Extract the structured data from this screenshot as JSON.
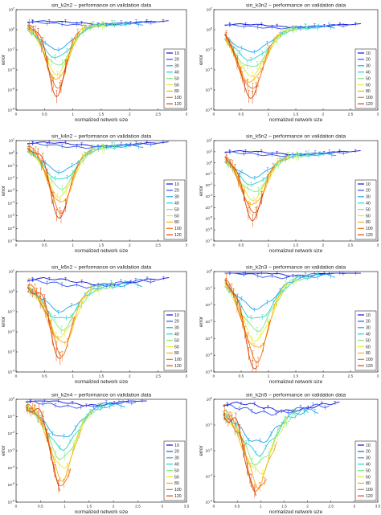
{
  "figure": {
    "legend_values": [
      "10",
      "20",
      "30",
      "40",
      "50",
      "60",
      "80",
      "100",
      "120"
    ]
  },
  "chart_data": [
    {
      "type": "line",
      "title": "sin_k2n2 – performance on validation data",
      "xlabel": "normalized network size",
      "ylabel": "error",
      "xlim": [
        0,
        3
      ],
      "x_ticks": [
        "0",
        "0.5",
        "1",
        "1.5",
        "2",
        "2.5",
        "3"
      ],
      "y_log": true,
      "y_exp": [
        -8,
        2
      ],
      "y_ticks": [
        "10^2",
        "10^0",
        "10^-2",
        "10^-4",
        "10^-6",
        "10^-8"
      ],
      "grid": false,
      "legend_position": "right",
      "series": [
        {
          "name": "10"
        },
        {
          "name": "20"
        },
        {
          "name": "30"
        },
        {
          "name": "40"
        },
        {
          "name": "50"
        },
        {
          "name": "60"
        },
        {
          "name": "80"
        },
        {
          "name": "100"
        },
        {
          "name": "120"
        }
      ]
    },
    {
      "type": "line",
      "title": "sin_k3n2 – performance on validation data",
      "xlabel": "normalized network size",
      "ylabel": "error",
      "xlim": [
        0,
        3
      ],
      "x_ticks": [
        "0",
        "0.5",
        "1",
        "1.5",
        "2",
        "2.5",
        "3"
      ],
      "y_log": true,
      "y_exp": [
        -8,
        2
      ],
      "y_ticks": [
        "10^2",
        "10^0",
        "10^-2",
        "10^-4",
        "10^-6",
        "10^-8"
      ],
      "grid": false,
      "legend_position": "right",
      "series": [
        {
          "name": "10"
        },
        {
          "name": "20"
        },
        {
          "name": "30"
        },
        {
          "name": "40"
        },
        {
          "name": "50"
        },
        {
          "name": "60"
        },
        {
          "name": "80"
        },
        {
          "name": "100"
        },
        {
          "name": "120"
        }
      ]
    },
    {
      "type": "line",
      "title": "sin_k4n2 – performance on validation data",
      "xlabel": "normalized network size",
      "ylabel": "error",
      "xlim": [
        0,
        3
      ],
      "x_ticks": [
        "0",
        "0.5",
        "1",
        "1.5",
        "2",
        "2.5",
        "3"
      ],
      "y_log": true,
      "y_exp": [
        -7,
        1
      ],
      "y_ticks": [
        "10^1",
        "10^0",
        "10^-1",
        "10^-2",
        "10^-3",
        "10^-4",
        "10^-5",
        "10^-6",
        "10^-7"
      ],
      "grid": false,
      "legend_position": "right",
      "series": [
        {
          "name": "10"
        },
        {
          "name": "20"
        },
        {
          "name": "30"
        },
        {
          "name": "40"
        },
        {
          "name": "50"
        },
        {
          "name": "60"
        },
        {
          "name": "80"
        },
        {
          "name": "100"
        },
        {
          "name": "120"
        }
      ]
    },
    {
      "type": "line",
      "title": "sin_k5n2 – performance on validation data",
      "xlabel": "normalized network size",
      "ylabel": "error",
      "xlim": [
        0,
        3
      ],
      "x_ticks": [
        "0",
        "0.5",
        "1",
        "1.5",
        "2",
        "2.5",
        "3"
      ],
      "y_log": true,
      "y_exp": [
        -7,
        2
      ],
      "y_ticks": [
        "10^2",
        "10^1",
        "10^0",
        "10^-1",
        "10^-2",
        "10^-3",
        "10^-4",
        "10^-5",
        "10^-6",
        "10^-7"
      ],
      "grid": false,
      "legend_position": "right",
      "series": [
        {
          "name": "10"
        },
        {
          "name": "20"
        },
        {
          "name": "30"
        },
        {
          "name": "40"
        },
        {
          "name": "50"
        },
        {
          "name": "60"
        },
        {
          "name": "80"
        },
        {
          "name": "100"
        },
        {
          "name": "120"
        }
      ]
    },
    {
      "type": "line",
      "title": "sin_k6n2 – performance on validation data",
      "xlabel": "normalized network size",
      "ylabel": "error",
      "xlim": [
        0,
        3
      ],
      "x_ticks": [
        "0",
        "0.5",
        "1",
        "1.5",
        "2",
        "2.5",
        "3"
      ],
      "y_log": true,
      "y_exp": [
        -4,
        1
      ],
      "y_ticks": [
        "10^1",
        "10^0",
        "10^-1",
        "10^-2",
        "10^-3",
        "10^-4"
      ],
      "grid": false,
      "legend_position": "right",
      "series": [
        {
          "name": "10"
        },
        {
          "name": "20"
        },
        {
          "name": "30"
        },
        {
          "name": "40"
        },
        {
          "name": "50"
        },
        {
          "name": "60"
        },
        {
          "name": "80"
        },
        {
          "name": "100"
        },
        {
          "name": "120"
        }
      ]
    },
    {
      "type": "line",
      "title": "sin_k2n3 – performance on validation data",
      "xlabel": "normalized network size",
      "ylabel": "error",
      "xlim": [
        0,
        3
      ],
      "x_ticks": [
        "0",
        "0.5",
        "1",
        "1.5",
        "2",
        "2.5",
        "3"
      ],
      "y_log": true,
      "y_exp": [
        -6,
        0
      ],
      "y_ticks": [
        "10^0",
        "10^-1",
        "10^-2",
        "10^-3",
        "10^-4",
        "10^-5",
        "10^-6"
      ],
      "grid": false,
      "legend_position": "right",
      "series": [
        {
          "name": "10"
        },
        {
          "name": "20"
        },
        {
          "name": "30"
        },
        {
          "name": "40"
        },
        {
          "name": "50"
        },
        {
          "name": "60"
        },
        {
          "name": "80"
        },
        {
          "name": "100"
        },
        {
          "name": "120"
        }
      ]
    },
    {
      "type": "line",
      "title": "sin_k2n4 – performance on validation data",
      "xlabel": "normalized network size",
      "ylabel": "error",
      "xlim": [
        0,
        3.5
      ],
      "x_ticks": [
        "0",
        "0.5",
        "1",
        "1.5",
        "2",
        "2.5",
        "3",
        "3.5"
      ],
      "y_log": true,
      "y_exp": [
        -6,
        0
      ],
      "y_ticks": [
        "10^0",
        "10^-1",
        "10^-2",
        "10^-3",
        "10^-4",
        "10^-5",
        "10^-6"
      ],
      "grid": false,
      "legend_position": "right",
      "series": [
        {
          "name": "10"
        },
        {
          "name": "20"
        },
        {
          "name": "30"
        },
        {
          "name": "40"
        },
        {
          "name": "50"
        },
        {
          "name": "60"
        },
        {
          "name": "80"
        },
        {
          "name": "100"
        },
        {
          "name": "120"
        }
      ]
    },
    {
      "type": "line",
      "title": "sin_k2n5 – performance on validation data",
      "xlabel": "normalized network size",
      "ylabel": "error",
      "xlim": [
        0,
        3.5
      ],
      "x_ticks": [
        "0",
        "0.5",
        "1",
        "1.5",
        "2",
        "2.5",
        "3",
        "3.5"
      ],
      "y_log": true,
      "y_exp": [
        -4,
        0
      ],
      "y_ticks": [
        "10^0",
        "10^-1",
        "10^-2",
        "10^-3",
        "10^-4"
      ],
      "grid": false,
      "legend_position": "right",
      "series": [
        {
          "name": "10"
        },
        {
          "name": "20"
        },
        {
          "name": "30"
        },
        {
          "name": "40"
        },
        {
          "name": "50"
        },
        {
          "name": "60"
        },
        {
          "name": "80"
        },
        {
          "name": "100"
        },
        {
          "name": "120"
        }
      ]
    }
  ]
}
